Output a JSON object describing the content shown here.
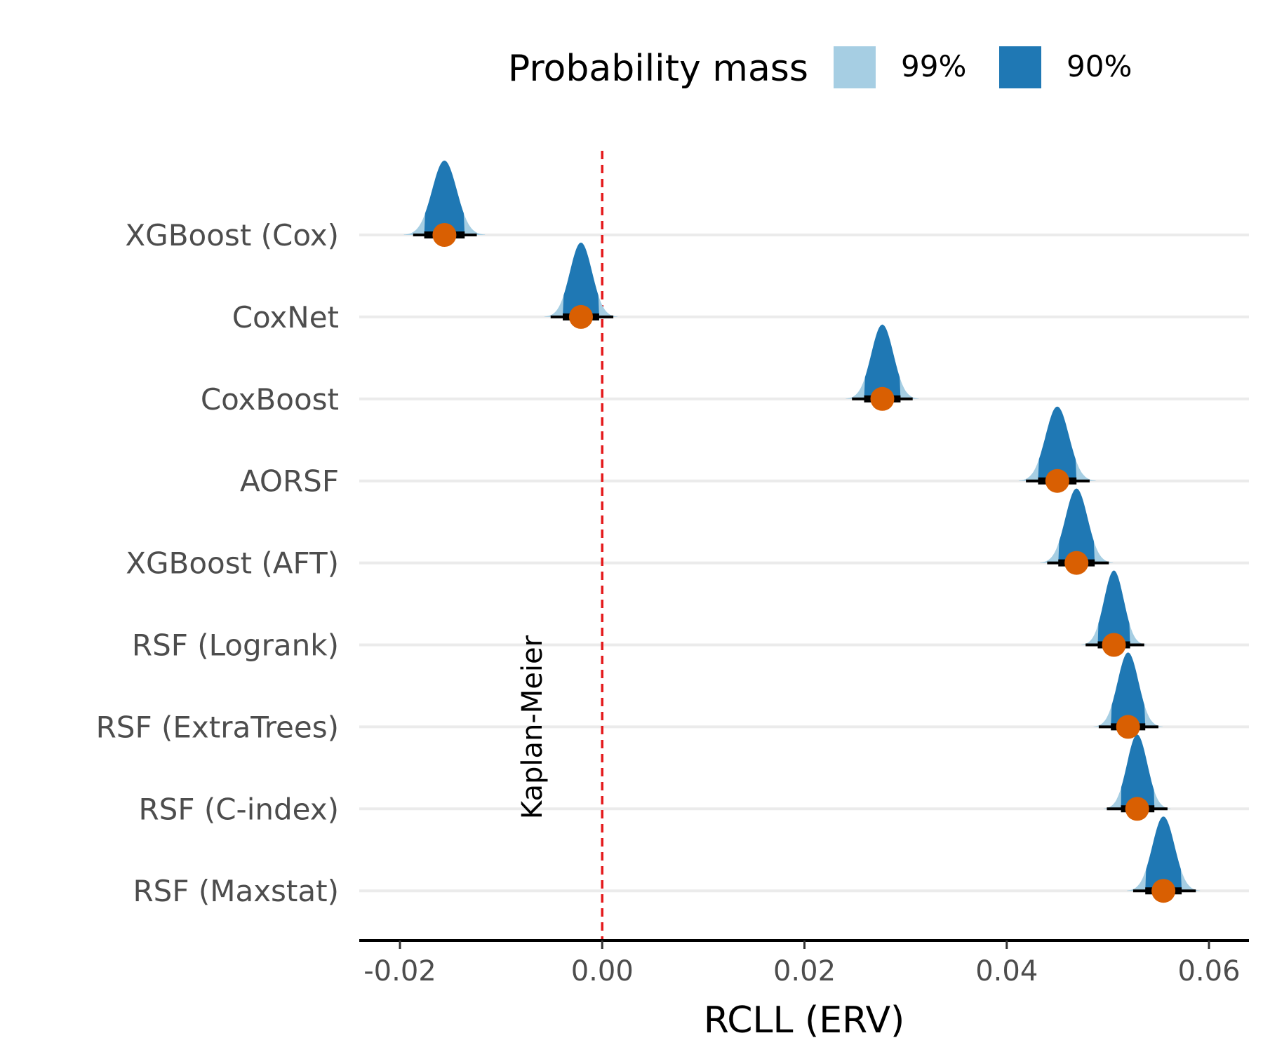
{
  "legend": {
    "title": "Probability mass",
    "items": [
      {
        "label": "99%",
        "color": "#a6cee3"
      },
      {
        "label": "90%",
        "color": "#1f78b4"
      }
    ]
  },
  "chart_data": {
    "type": "interval",
    "xlabel": "RCLL (ERV)",
    "ylabel": "",
    "xlim": [
      -0.024,
      0.064
    ],
    "xticks": [
      -0.02,
      0.0,
      0.02,
      0.04,
      0.06
    ],
    "xtick_labels": [
      "-0.02",
      "0.00",
      "0.02",
      "0.04",
      "0.06"
    ],
    "reference_line": {
      "x": 0.0,
      "label": "Kaplan-Meier",
      "color": "#e41a1c"
    },
    "point_color": "#d95f02",
    "grid": "horizontal",
    "categories": [
      "XGBoost (Cox)",
      "CoxNet",
      "CoxBoost",
      "AORSF",
      "XGBoost (AFT)",
      "RSF (Logrank)",
      "RSF (ExtraTrees)",
      "RSF (C-index)",
      "RSF (Maxstat)"
    ],
    "estimates": [
      {
        "model": "XGBoost (Cox)",
        "mean": -0.0156,
        "ci90": [
          -0.0176,
          -0.0136
        ],
        "ci99": [
          -0.0187,
          -0.0124
        ]
      },
      {
        "model": "CoxNet",
        "mean": -0.0021,
        "ci90": [
          -0.0039,
          -0.0003
        ],
        "ci99": [
          -0.0051,
          0.0011
        ]
      },
      {
        "model": "CoxBoost",
        "mean": 0.0277,
        "ci90": [
          0.0259,
          0.0295
        ],
        "ci99": [
          0.0247,
          0.0307
        ]
      },
      {
        "model": "AORSF",
        "mean": 0.045,
        "ci90": [
          0.0431,
          0.0469
        ],
        "ci99": [
          0.0419,
          0.0482
        ]
      },
      {
        "model": "XGBoost (AFT)",
        "mean": 0.0469,
        "ci90": [
          0.0451,
          0.0487
        ],
        "ci99": [
          0.044,
          0.0501
        ]
      },
      {
        "model": "RSF (Logrank)",
        "mean": 0.0506,
        "ci90": [
          0.049,
          0.0522
        ],
        "ci99": [
          0.0478,
          0.0536
        ]
      },
      {
        "model": "RSF (ExtraTrees)",
        "mean": 0.052,
        "ci90": [
          0.0503,
          0.0537
        ],
        "ci99": [
          0.0491,
          0.055
        ]
      },
      {
        "model": "RSF (C-index)",
        "mean": 0.0529,
        "ci90": [
          0.0513,
          0.0546
        ],
        "ci99": [
          0.0499,
          0.0559
        ]
      },
      {
        "model": "RSF (Maxstat)",
        "mean": 0.0555,
        "ci90": [
          0.0537,
          0.0573
        ],
        "ci99": [
          0.0525,
          0.0587
        ]
      }
    ]
  }
}
